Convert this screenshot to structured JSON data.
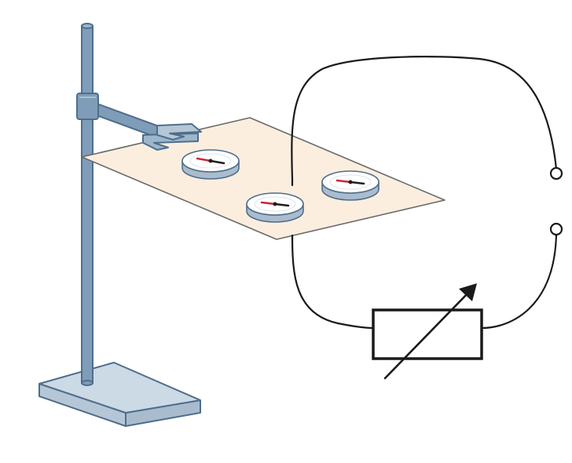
{
  "diagram": {
    "components": [
      "retort-stand",
      "clamp",
      "card",
      "compass",
      "compass",
      "compass",
      "wire",
      "variable-resistor",
      "terminal",
      "terminal"
    ],
    "compass_count": 3,
    "terminal_count": 2,
    "colors": {
      "stand_fill": "#7f9db8",
      "stand_stroke": "#4f6e8c",
      "base_top": "#ccdae6",
      "base_side": "#b5c7d6",
      "card_fill": "#fbeedf",
      "card_stroke": "#6a6a6a",
      "compass_face": "#ffffff",
      "compass_rim": "#aabccd",
      "needle_north": "#c8283a",
      "needle_south": "#1d1d1d",
      "wire": "#1a1a1a",
      "resistor_stroke": "#1a1a1a"
    }
  }
}
